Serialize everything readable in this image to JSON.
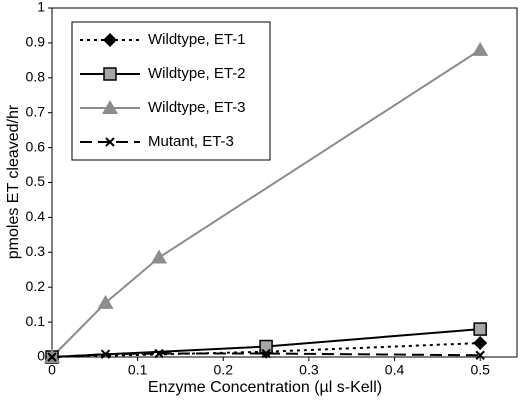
{
  "chart_data": {
    "type": "line",
    "xlabel": "Enzyme Concentration (µl s-Kell)",
    "ylabel": "pmoles ET cleaved/hr",
    "xlim": [
      0,
      0.543
    ],
    "xticks": [
      0,
      0.1,
      0.2,
      0.3,
      0.4,
      0.5
    ],
    "ylim": [
      0,
      1
    ],
    "yticks": [
      0,
      0.1,
      0.2,
      0.3,
      0.4,
      0.5,
      0.6,
      0.7,
      0.8,
      0.9,
      1
    ],
    "legend": "upper left",
    "series": [
      {
        "name": "Wildtype, ET-1",
        "color": "#000000",
        "marker_fill": "#000000",
        "marker": "diamond",
        "dash": "3,4",
        "x": [
          0,
          0.25,
          0.5
        ],
        "values": [
          0,
          0.015,
          0.04
        ]
      },
      {
        "name": "Wildtype, ET-2",
        "color": "#000000",
        "marker_fill": "#a6a6a6",
        "marker": "square",
        "dash": "none",
        "x": [
          0,
          0.25,
          0.5
        ],
        "values": [
          0,
          0.03,
          0.08
        ]
      },
      {
        "name": "Wildtype, ET-3",
        "color": "#8c8c8c",
        "marker_fill": "#8c8c8c",
        "marker": "triangle",
        "dash": "none",
        "x": [
          0,
          0.0625,
          0.125,
          0.5
        ],
        "values": [
          0,
          0.155,
          0.285,
          0.88
        ]
      },
      {
        "name": "Mutant, ET-3",
        "color": "#000000",
        "marker_fill": "#000000",
        "marker": "x",
        "dash": "12,6",
        "x": [
          0,
          0.0625,
          0.125,
          0.25,
          0.5
        ],
        "values": [
          0,
          0.008,
          0.01,
          0.01,
          0.005
        ]
      }
    ]
  }
}
